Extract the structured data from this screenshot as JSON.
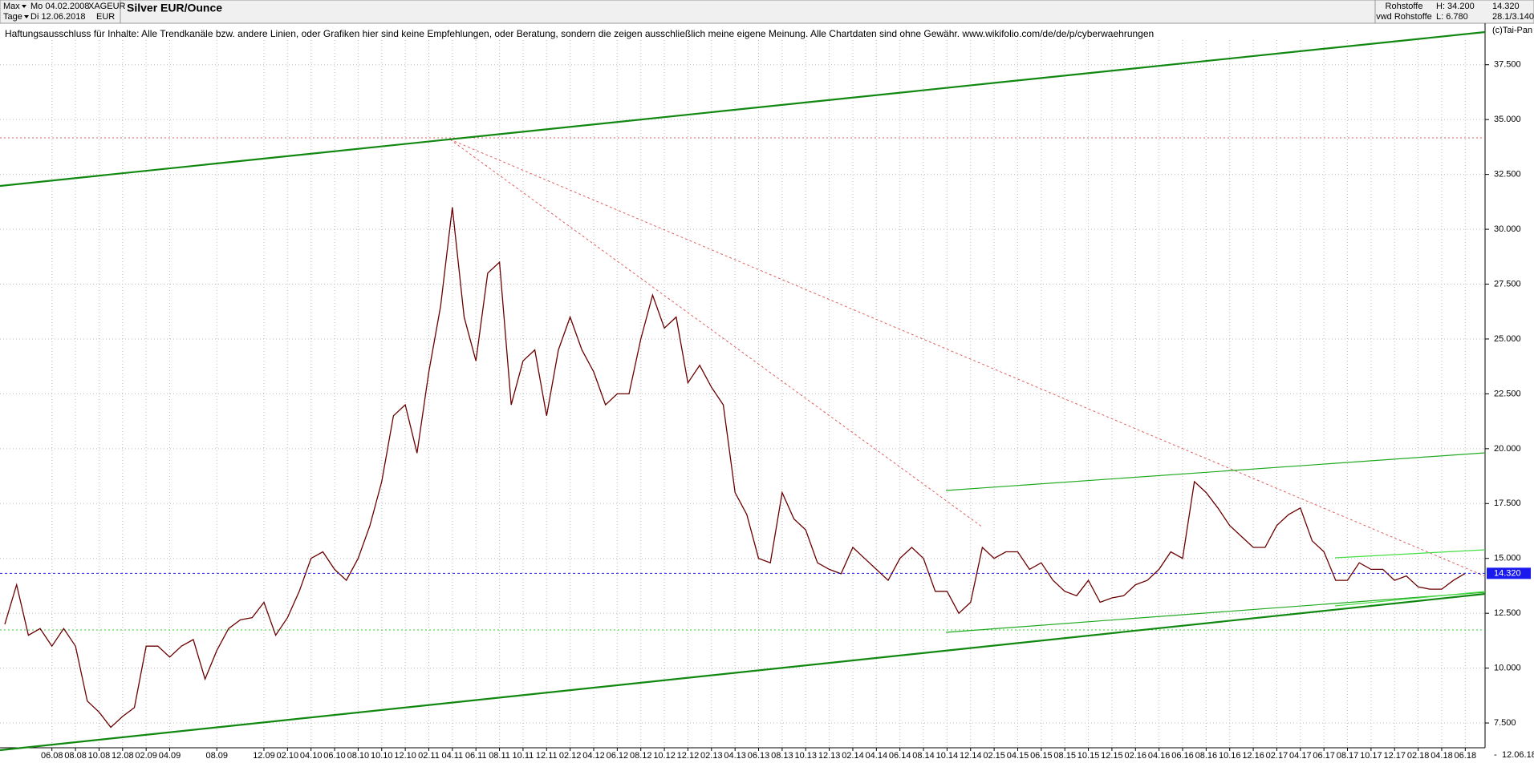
{
  "header": {
    "range": "Max",
    "start": "Mo 04.02.2008",
    "symbol": "XAGEUR",
    "period": "Tage",
    "end": "Di 12.06.2018",
    "currency": "EUR",
    "group": "Rohstoffe",
    "source": "vwd Rohstoffe",
    "high": "H: 34.200",
    "low": "L: 6.780",
    "last": "14.320",
    "scale": "28.1/3.140",
    "copyright": "(c)Tai-Pan",
    "disclaimer": "Haftungsausschluss für Inhalte: Alle Trendkanäle bzw. andere Linien, oder Grafiken hier sind keine Empfehlungen, oder Beratung, sondern die zeigen ausschließlich meine eigene Meinung. Alle Chartdaten sind ohne Gewähr.  www.wikifolio.com/de/de/p/cyberwaehrungen",
    "date_label": "12.06.18",
    "dash": "-"
  },
  "chart_data": {
    "type": "line",
    "title": "Silver EUR/Ounce",
    "color": "#6a0000",
    "x": [
      "02.08",
      "03.08",
      "04.08",
      "05.08",
      "06.08",
      "07.08",
      "08.08",
      "09.08",
      "10.08",
      "11.08",
      "12.08",
      "01.09",
      "02.09",
      "03.09",
      "04.09",
      "05.09",
      "06.09",
      "07.09",
      "08.09",
      "09.09",
      "10.09",
      "11.09",
      "12.09",
      "01.10",
      "02.10",
      "03.10",
      "04.10",
      "05.10",
      "06.10",
      "07.10",
      "08.10",
      "09.10",
      "10.10",
      "11.10",
      "12.10",
      "01.11",
      "02.11",
      "03.11",
      "04.11",
      "05.11",
      "06.11",
      "07.11",
      "08.11",
      "09.11",
      "10.11",
      "11.11",
      "12.11",
      "01.12",
      "02.12",
      "03.12",
      "04.12",
      "05.12",
      "06.12",
      "07.12",
      "08.12",
      "09.12",
      "10.12",
      "11.12",
      "12.12",
      "01.13",
      "02.13",
      "03.13",
      "04.13",
      "05.13",
      "06.13",
      "07.13",
      "08.13",
      "09.13",
      "10.13",
      "11.13",
      "12.13",
      "01.14",
      "02.14",
      "03.14",
      "04.14",
      "05.14",
      "06.14",
      "07.14",
      "08.14",
      "09.14",
      "10.14",
      "11.14",
      "12.14",
      "01.15",
      "02.15",
      "03.15",
      "04.15",
      "05.15",
      "06.15",
      "07.15",
      "08.15",
      "09.15",
      "10.15",
      "11.15",
      "12.15",
      "01.16",
      "02.16",
      "03.16",
      "04.16",
      "05.16",
      "06.16",
      "07.16",
      "08.16",
      "09.16",
      "10.16",
      "11.16",
      "12.16",
      "01.17",
      "02.17",
      "03.17",
      "04.17",
      "05.17",
      "06.17",
      "07.17",
      "08.17",
      "09.17",
      "10.17",
      "11.17",
      "12.17",
      "01.18",
      "02.18",
      "03.18",
      "04.18",
      "05.18",
      "06.18"
    ],
    "values": [
      12.0,
      13.8,
      11.5,
      11.8,
      11.0,
      11.8,
      11.0,
      8.5,
      8.0,
      7.3,
      7.8,
      8.2,
      11.0,
      11.0,
      10.5,
      11.0,
      11.3,
      9.5,
      10.8,
      11.8,
      12.2,
      12.3,
      13.0,
      11.5,
      12.3,
      13.5,
      15.0,
      15.3,
      14.5,
      14.0,
      15.0,
      16.5,
      18.5,
      21.5,
      22.0,
      19.8,
      23.5,
      26.5,
      31.0,
      26.0,
      24.0,
      28.0,
      28.5,
      22.0,
      24.0,
      24.5,
      21.5,
      24.5,
      26.0,
      24.5,
      23.5,
      22.0,
      22.5,
      22.5,
      25.0,
      27.0,
      25.5,
      26.0,
      23.0,
      23.8,
      22.8,
      22.0,
      18.0,
      17.0,
      15.0,
      14.8,
      18.0,
      16.8,
      16.3,
      14.8,
      14.5,
      14.3,
      15.5,
      15.0,
      14.5,
      14.0,
      15.0,
      15.5,
      15.0,
      13.5,
      13.5,
      12.5,
      13.0,
      15.5,
      15.0,
      15.3,
      15.3,
      14.5,
      14.8,
      14.0,
      13.5,
      13.3,
      14.0,
      13.0,
      13.2,
      13.3,
      13.8,
      14.0,
      14.5,
      15.3,
      15.0,
      18.5,
      18.0,
      17.3,
      16.5,
      16.0,
      15.5,
      15.5,
      16.5,
      17.0,
      17.3,
      15.8,
      15.3,
      14.0,
      14.0,
      14.8,
      14.5,
      14.5,
      14.0,
      14.2,
      13.7,
      13.6,
      13.6,
      14.0,
      14.32
    ],
    "xlim": [
      "02.08",
      "07.18"
    ],
    "xticks": [
      "06.08",
      "08.08",
      "10.08",
      "12.08",
      "02.09",
      "04.09",
      "08.09",
      "12.09",
      "02.10",
      "04.10",
      "06.10",
      "08.10",
      "10.10",
      "12.10",
      "02.11",
      "04.11",
      "06.11",
      "08.11",
      "10.11",
      "12.11",
      "02.12",
      "04.12",
      "06.12",
      "08.12",
      "10.12",
      "12.12",
      "02.13",
      "04.13",
      "06.13",
      "08.13",
      "10.13",
      "12.13",
      "02.14",
      "04.14",
      "06.14",
      "08.14",
      "10.14",
      "12.14",
      "02.15",
      "04.15",
      "06.15",
      "08.15",
      "10.15",
      "12.15",
      "02.16",
      "04.16",
      "06.16",
      "08.16",
      "10.16",
      "12.16",
      "02.17",
      "04.17",
      "06.17",
      "08.17",
      "10.17",
      "12.17",
      "02.18",
      "04.18",
      "06.18"
    ],
    "ylim": [
      6.37,
      39.39
    ],
    "yticks": [
      {
        "value": 7.5,
        "label": "7.500"
      },
      {
        "value": 10,
        "label": "10.000"
      },
      {
        "value": 12.5,
        "label": "12.500"
      },
      {
        "value": 15,
        "label": "15.000"
      },
      {
        "value": 17.5,
        "label": "17.500"
      },
      {
        "value": 20,
        "label": "20.000"
      },
      {
        "value": 22.5,
        "label": "22.500"
      },
      {
        "value": 25,
        "label": "25.000"
      },
      {
        "value": 27.5,
        "label": "27.500"
      },
      {
        "value": 30,
        "label": "30.000"
      },
      {
        "value": 32.5,
        "label": "32.500"
      },
      {
        "value": 35,
        "label": "35.000"
      },
      {
        "value": 37.5,
        "label": "37.500"
      }
    ],
    "last": {
      "value": 14.32,
      "label": "14.320"
    },
    "grid": true
  }
}
